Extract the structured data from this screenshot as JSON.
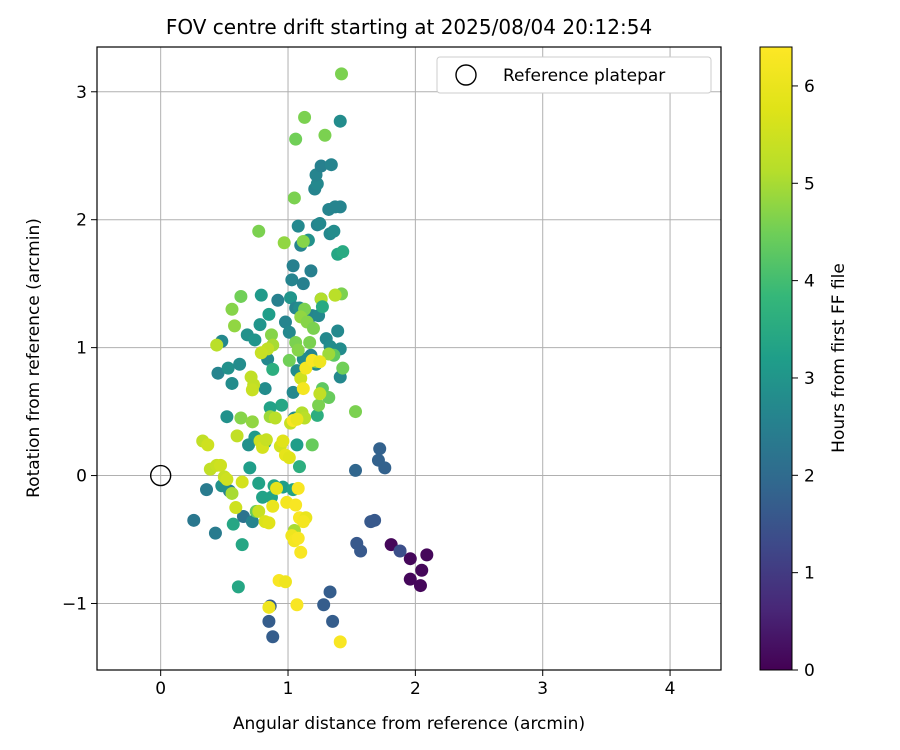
{
  "chart_data": {
    "type": "scatter",
    "title": "FOV centre drift starting at 2025/08/04 20:12:54",
    "xlabel": "Angular distance from reference (arcmin)",
    "ylabel": "Rotation from reference (arcmin)",
    "xlim": [
      -0.5,
      4.4
    ],
    "ylim": [
      -1.52,
      3.35
    ],
    "xticks": [
      0,
      1,
      2,
      3,
      4
    ],
    "xtick_labels": [
      "0",
      "1",
      "2",
      "3",
      "4"
    ],
    "yticks": [
      -1,
      0,
      1,
      2,
      3
    ],
    "ytick_labels": [
      "−1",
      "0",
      "1",
      "2",
      "3"
    ],
    "grid": true,
    "legend": {
      "placement": "top-right",
      "label": "Reference platepar"
    },
    "reference_point": {
      "x": 0,
      "y": 0
    },
    "colorbar": {
      "label": "Hours from first FF file",
      "colormap": "viridis",
      "range": [
        0,
        6.4
      ],
      "ticks": [
        0,
        1,
        2,
        3,
        4,
        5,
        6
      ],
      "tick_labels": [
        "0",
        "1",
        "2",
        "3",
        "4",
        "5",
        "6"
      ]
    },
    "points": [
      {
        "x": 1.81,
        "y": -0.54,
        "h": 0.1
      },
      {
        "x": 1.96,
        "y": -0.65,
        "h": 0.1
      },
      {
        "x": 2.09,
        "y": -0.62,
        "h": 0.1
      },
      {
        "x": 2.05,
        "y": -0.74,
        "h": 0.1
      },
      {
        "x": 1.96,
        "y": -0.81,
        "h": 0.1
      },
      {
        "x": 2.04,
        "y": -0.86,
        "h": 0.1
      },
      {
        "x": 1.88,
        "y": -0.59,
        "h": 1.4
      },
      {
        "x": 1.68,
        "y": -0.35,
        "h": 1.6
      },
      {
        "x": 1.65,
        "y": -0.36,
        "h": 1.6
      },
      {
        "x": 1.54,
        "y": -0.53,
        "h": 1.6
      },
      {
        "x": 1.57,
        "y": -0.59,
        "h": 1.6
      },
      {
        "x": 1.53,
        "y": 0.04,
        "h": 1.9
      },
      {
        "x": 1.72,
        "y": 0.21,
        "h": 1.8
      },
      {
        "x": 1.71,
        "y": 0.12,
        "h": 1.8
      },
      {
        "x": 1.76,
        "y": 0.06,
        "h": 1.8
      },
      {
        "x": 1.33,
        "y": -0.91,
        "h": 1.7
      },
      {
        "x": 1.28,
        "y": -1.01,
        "h": 1.7
      },
      {
        "x": 1.35,
        "y": -1.14,
        "h": 1.7
      },
      {
        "x": 0.85,
        "y": -1.14,
        "h": 1.7
      },
      {
        "x": 0.88,
        "y": -1.26,
        "h": 1.7
      },
      {
        "x": 0.86,
        "y": -1.02,
        "h": 1.7
      },
      {
        "x": 0.26,
        "y": -0.35,
        "h": 2.3
      },
      {
        "x": 0.43,
        "y": -0.45,
        "h": 2.4
      },
      {
        "x": 0.36,
        "y": -0.11,
        "h": 2.4
      },
      {
        "x": 0.57,
        "y": -0.38,
        "h": 3.4
      },
      {
        "x": 0.64,
        "y": -0.54,
        "h": 3.4
      },
      {
        "x": 0.61,
        "y": -0.87,
        "h": 3.4
      },
      {
        "x": 0.65,
        "y": -0.32,
        "h": 2.2
      },
      {
        "x": 0.72,
        "y": -0.36,
        "h": 2.6
      },
      {
        "x": 0.54,
        "y": -0.12,
        "h": 2.5
      },
      {
        "x": 0.48,
        "y": -0.08,
        "h": 2.9
      },
      {
        "x": 0.52,
        "y": 0.46,
        "h": 2.9
      },
      {
        "x": 0.56,
        "y": 0.72,
        "h": 2.8
      },
      {
        "x": 0.45,
        "y": 0.8,
        "h": 2.6
      },
      {
        "x": 0.48,
        "y": 1.05,
        "h": 2.7
      },
      {
        "x": 0.53,
        "y": 0.84,
        "h": 2.9
      },
      {
        "x": 0.62,
        "y": 0.87,
        "h": 2.8
      },
      {
        "x": 0.68,
        "y": 1.1,
        "h": 2.9
      },
      {
        "x": 0.74,
        "y": 1.06,
        "h": 3.0
      },
      {
        "x": 0.78,
        "y": 1.18,
        "h": 3.0
      },
      {
        "x": 0.79,
        "y": 1.41,
        "h": 3.1
      },
      {
        "x": 0.85,
        "y": 1.26,
        "h": 3.2
      },
      {
        "x": 0.92,
        "y": 1.37,
        "h": 2.5
      },
      {
        "x": 0.98,
        "y": 1.2,
        "h": 2.6
      },
      {
        "x": 1.01,
        "y": 1.12,
        "h": 2.7
      },
      {
        "x": 1.02,
        "y": 1.39,
        "h": 3.0
      },
      {
        "x": 1.03,
        "y": 1.53,
        "h": 2.6
      },
      {
        "x": 1.04,
        "y": 1.64,
        "h": 2.5
      },
      {
        "x": 1.06,
        "y": 1.31,
        "h": 2.6
      },
      {
        "x": 1.09,
        "y": 1.31,
        "h": 2.8
      },
      {
        "x": 1.12,
        "y": 1.5,
        "h": 2.5
      },
      {
        "x": 1.08,
        "y": 1.95,
        "h": 2.7
      },
      {
        "x": 1.1,
        "y": 1.8,
        "h": 2.6
      },
      {
        "x": 1.16,
        "y": 1.84,
        "h": 2.9
      },
      {
        "x": 1.18,
        "y": 1.6,
        "h": 2.5
      },
      {
        "x": 1.19,
        "y": 1.25,
        "h": 2.6
      },
      {
        "x": 1.24,
        "y": 1.25,
        "h": 2.7
      },
      {
        "x": 1.26,
        "y": 1.38,
        "h": 2.5
      },
      {
        "x": 1.21,
        "y": 2.24,
        "h": 2.6
      },
      {
        "x": 1.23,
        "y": 2.28,
        "h": 2.7
      },
      {
        "x": 1.22,
        "y": 2.35,
        "h": 2.6
      },
      {
        "x": 1.26,
        "y": 2.42,
        "h": 2.5
      },
      {
        "x": 1.34,
        "y": 2.43,
        "h": 2.6
      },
      {
        "x": 1.23,
        "y": 1.96,
        "h": 2.6
      },
      {
        "x": 1.25,
        "y": 1.97,
        "h": 2.7
      },
      {
        "x": 1.32,
        "y": 2.08,
        "h": 2.6
      },
      {
        "x": 1.37,
        "y": 2.1,
        "h": 2.6
      },
      {
        "x": 1.41,
        "y": 2.1,
        "h": 2.6
      },
      {
        "x": 1.41,
        "y": 2.77,
        "h": 2.8
      },
      {
        "x": 1.33,
        "y": 1.89,
        "h": 2.7
      },
      {
        "x": 1.36,
        "y": 1.91,
        "h": 2.8
      },
      {
        "x": 1.39,
        "y": 1.73,
        "h": 3.4
      },
      {
        "x": 1.43,
        "y": 1.75,
        "h": 3.5
      },
      {
        "x": 1.3,
        "y": 1.07,
        "h": 2.7
      },
      {
        "x": 1.33,
        "y": 1.01,
        "h": 2.8
      },
      {
        "x": 1.39,
        "y": 1.13,
        "h": 2.7
      },
      {
        "x": 1.41,
        "y": 0.99,
        "h": 2.8
      },
      {
        "x": 1.41,
        "y": 0.77,
        "h": 2.7
      },
      {
        "x": 1.43,
        "y": 0.84,
        "h": 4.5
      },
      {
        "x": 1.36,
        "y": 0.94,
        "h": 4.3
      },
      {
        "x": 1.18,
        "y": 0.94,
        "h": 2.6
      },
      {
        "x": 1.22,
        "y": 0.87,
        "h": 2.7
      },
      {
        "x": 1.12,
        "y": 0.91,
        "h": 2.8
      },
      {
        "x": 1.07,
        "y": 0.82,
        "h": 2.8
      },
      {
        "x": 1.04,
        "y": 0.65,
        "h": 2.7
      },
      {
        "x": 1.05,
        "y": 0.45,
        "h": 2.8
      },
      {
        "x": 1.07,
        "y": 0.24,
        "h": 3.2
      },
      {
        "x": 0.95,
        "y": 0.55,
        "h": 3.4
      },
      {
        "x": 0.86,
        "y": 0.53,
        "h": 3.3
      },
      {
        "x": 0.82,
        "y": 0.68,
        "h": 2.8
      },
      {
        "x": 0.84,
        "y": 0.91,
        "h": 2.7
      },
      {
        "x": 0.88,
        "y": 0.83,
        "h": 3.6
      },
      {
        "x": 0.82,
        "y": 0.26,
        "h": 3.2
      },
      {
        "x": 0.74,
        "y": 0.3,
        "h": 3.1
      },
      {
        "x": 0.69,
        "y": 0.24,
        "h": 2.9
      },
      {
        "x": 0.7,
        "y": 0.06,
        "h": 3.2
      },
      {
        "x": 0.77,
        "y": -0.06,
        "h": 3.3
      },
      {
        "x": 0.8,
        "y": -0.17,
        "h": 3.3
      },
      {
        "x": 0.75,
        "y": -0.28,
        "h": 4.4
      },
      {
        "x": 0.87,
        "y": -0.17,
        "h": 3.3
      },
      {
        "x": 0.89,
        "y": -0.08,
        "h": 3.4
      },
      {
        "x": 0.96,
        "y": -0.09,
        "h": 3.2
      },
      {
        "x": 1.04,
        "y": -0.11,
        "h": 3.3
      },
      {
        "x": 1.09,
        "y": 0.07,
        "h": 3.6
      },
      {
        "x": 1.19,
        "y": 0.24,
        "h": 4.4
      },
      {
        "x": 1.23,
        "y": 0.47,
        "h": 3.6
      },
      {
        "x": 1.24,
        "y": 0.55,
        "h": 4.6
      },
      {
        "x": 1.27,
        "y": 0.68,
        "h": 4.3
      },
      {
        "x": 1.32,
        "y": 0.61,
        "h": 4.4
      },
      {
        "x": 1.53,
        "y": 0.5,
        "h": 4.6
      },
      {
        "x": 1.06,
        "y": 2.63,
        "h": 4.5
      },
      {
        "x": 1.13,
        "y": 2.8,
        "h": 4.6
      },
      {
        "x": 1.29,
        "y": 2.66,
        "h": 4.6
      },
      {
        "x": 1.42,
        "y": 3.14,
        "h": 4.6
      },
      {
        "x": 1.05,
        "y": 2.17,
        "h": 4.6
      },
      {
        "x": 1.12,
        "y": 1.83,
        "h": 4.7
      },
      {
        "x": 0.97,
        "y": 1.82,
        "h": 4.8
      },
      {
        "x": 0.77,
        "y": 1.91,
        "h": 4.6
      },
      {
        "x": 1.26,
        "y": 1.38,
        "h": 5.1
      },
      {
        "x": 1.37,
        "y": 1.41,
        "h": 5.2
      },
      {
        "x": 1.42,
        "y": 1.42,
        "h": 4.6
      },
      {
        "x": 1.13,
        "y": 1.3,
        "h": 4.6
      },
      {
        "x": 1.1,
        "y": 1.24,
        "h": 4.8
      },
      {
        "x": 1.15,
        "y": 1.2,
        "h": 4.7
      },
      {
        "x": 1.2,
        "y": 1.15,
        "h": 4.6
      },
      {
        "x": 1.27,
        "y": 1.32,
        "h": 3.5
      },
      {
        "x": 1.06,
        "y": 1.04,
        "h": 4.6
      },
      {
        "x": 1.08,
        "y": 0.98,
        "h": 4.7
      },
      {
        "x": 1.17,
        "y": 1.04,
        "h": 4.6
      },
      {
        "x": 1.22,
        "y": 0.89,
        "h": 4.5
      },
      {
        "x": 1.32,
        "y": 0.95,
        "h": 4.9
      },
      {
        "x": 1.01,
        "y": 0.9,
        "h": 4.5
      },
      {
        "x": 0.63,
        "y": 1.4,
        "h": 4.5
      },
      {
        "x": 0.56,
        "y": 1.3,
        "h": 4.7
      },
      {
        "x": 0.58,
        "y": 1.17,
        "h": 4.8
      },
      {
        "x": 0.87,
        "y": 1.1,
        "h": 4.7
      },
      {
        "x": 0.88,
        "y": 1.02,
        "h": 5.0
      },
      {
        "x": 0.84,
        "y": 0.99,
        "h": 5.3
      },
      {
        "x": 0.79,
        "y": 0.96,
        "h": 5.4
      },
      {
        "x": 0.44,
        "y": 1.02,
        "h": 5.2
      },
      {
        "x": 0.71,
        "y": 0.77,
        "h": 5.3
      },
      {
        "x": 0.73,
        "y": 0.71,
        "h": 5.3
      },
      {
        "x": 0.72,
        "y": 0.67,
        "h": 5.4
      },
      {
        "x": 0.63,
        "y": 0.45,
        "h": 4.7
      },
      {
        "x": 0.72,
        "y": 0.42,
        "h": 4.8
      },
      {
        "x": 0.86,
        "y": 0.46,
        "h": 4.9
      },
      {
        "x": 0.9,
        "y": 0.45,
        "h": 5.2
      },
      {
        "x": 1.02,
        "y": 0.41,
        "h": 5.4
      },
      {
        "x": 1.11,
        "y": 0.49,
        "h": 5.1
      },
      {
        "x": 1.13,
        "y": 0.45,
        "h": 5.2
      },
      {
        "x": 1.25,
        "y": 0.64,
        "h": 5.3
      },
      {
        "x": 1.1,
        "y": 0.76,
        "h": 5.5
      },
      {
        "x": 1.37,
        "y": 1.41,
        "h": 5.2
      },
      {
        "x": 0.6,
        "y": 0.31,
        "h": 5.3
      },
      {
        "x": 0.78,
        "y": 0.27,
        "h": 5.5
      },
      {
        "x": 0.8,
        "y": 0.22,
        "h": 5.6
      },
      {
        "x": 0.83,
        "y": 0.28,
        "h": 5.4
      },
      {
        "x": 0.94,
        "y": 0.23,
        "h": 5.6
      },
      {
        "x": 0.96,
        "y": 0.27,
        "h": 5.8
      },
      {
        "x": 0.98,
        "y": 0.16,
        "h": 5.9
      },
      {
        "x": 1.01,
        "y": 0.14,
        "h": 5.8
      },
      {
        "x": 0.33,
        "y": 0.27,
        "h": 5.3
      },
      {
        "x": 0.37,
        "y": 0.24,
        "h": 5.5
      },
      {
        "x": 0.39,
        "y": 0.05,
        "h": 5.3
      },
      {
        "x": 0.44,
        "y": 0.08,
        "h": 5.4
      },
      {
        "x": 0.47,
        "y": 0.08,
        "h": 5.5
      },
      {
        "x": 0.5,
        "y": -0.01,
        "h": 5.4
      },
      {
        "x": 0.52,
        "y": -0.03,
        "h": 5.5
      },
      {
        "x": 0.56,
        "y": -0.14,
        "h": 5.0
      },
      {
        "x": 0.64,
        "y": -0.05,
        "h": 5.6
      },
      {
        "x": 0.59,
        "y": -0.25,
        "h": 5.5
      },
      {
        "x": 0.77,
        "y": -0.28,
        "h": 5.4
      },
      {
        "x": 0.82,
        "y": -0.36,
        "h": 5.7
      },
      {
        "x": 0.85,
        "y": -0.37,
        "h": 5.8
      },
      {
        "x": 0.91,
        "y": -0.1,
        "h": 5.9
      },
      {
        "x": 0.88,
        "y": -0.24,
        "h": 6.0
      },
      {
        "x": 0.99,
        "y": -0.21,
        "h": 6.2
      },
      {
        "x": 1.06,
        "y": -0.23,
        "h": 6.3
      },
      {
        "x": 1.08,
        "y": -0.1,
        "h": 6.3
      },
      {
        "x": 1.09,
        "y": -0.33,
        "h": 6.3
      },
      {
        "x": 1.14,
        "y": -0.33,
        "h": 6.0
      },
      {
        "x": 1.12,
        "y": -0.36,
        "h": 6.2
      },
      {
        "x": 1.05,
        "y": -0.43,
        "h": 5.0
      },
      {
        "x": 1.03,
        "y": -0.47,
        "h": 6.1
      },
      {
        "x": 1.05,
        "y": -0.51,
        "h": 6.2
      },
      {
        "x": 1.08,
        "y": -0.49,
        "h": 6.3
      },
      {
        "x": 1.1,
        "y": -0.6,
        "h": 6.3
      },
      {
        "x": 0.93,
        "y": -0.82,
        "h": 6.3
      },
      {
        "x": 0.98,
        "y": -0.83,
        "h": 6.1
      },
      {
        "x": 0.85,
        "y": -1.03,
        "h": 6.1
      },
      {
        "x": 1.07,
        "y": -1.01,
        "h": 6.3
      },
      {
        "x": 1.41,
        "y": -1.3,
        "h": 6.3
      },
      {
        "x": 1.12,
        "y": 0.68,
        "h": 6.2
      },
      {
        "x": 1.14,
        "y": 0.84,
        "h": 6.2
      },
      {
        "x": 1.19,
        "y": 0.9,
        "h": 6.3
      },
      {
        "x": 1.25,
        "y": 0.89,
        "h": 6.1
      },
      {
        "x": 1.04,
        "y": 0.43,
        "h": 6.3
      },
      {
        "x": 1.07,
        "y": 0.44,
        "h": 6.0
      }
    ]
  }
}
